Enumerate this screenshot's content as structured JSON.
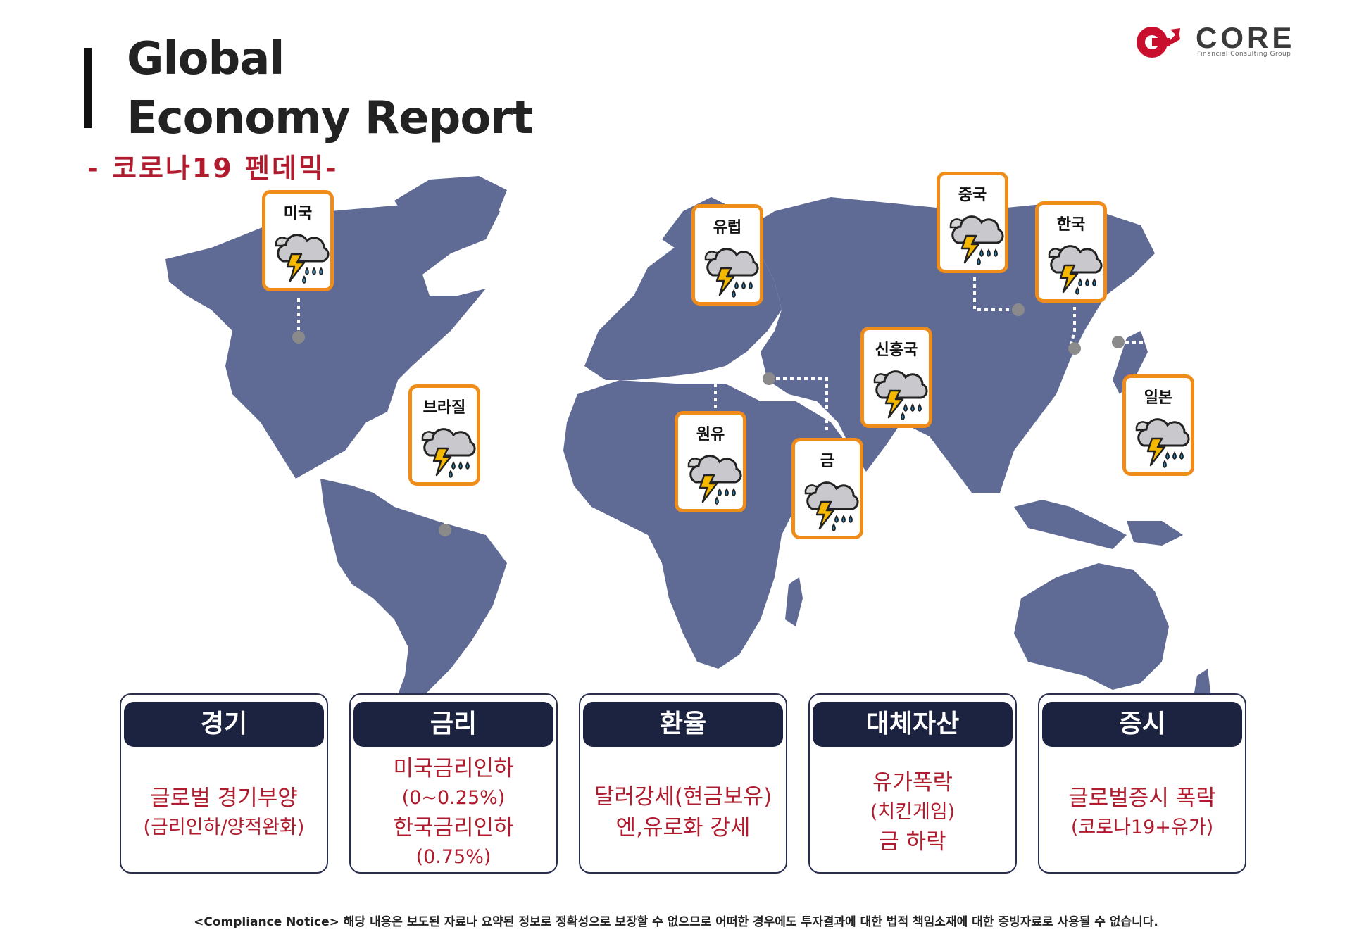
{
  "header": {
    "title_line1": "Global",
    "title_line2": "Economy Report",
    "subtitle": "- 코로나19 펜데믹-"
  },
  "logo": {
    "name": "CORE",
    "tagline": "Financial Consulting Group",
    "brand_color": "#c8102e"
  },
  "colors": {
    "map_fill": "#5f6b94",
    "card_border": "#f08c1a",
    "panel_header": "#1c2340",
    "accent_text": "#b01c2e"
  },
  "map_markers": [
    {
      "label": "미국",
      "icon": "thunderstorm-icon"
    },
    {
      "label": "브라질",
      "icon": "thunderstorm-icon"
    },
    {
      "label": "유럽",
      "icon": "thunderstorm-icon"
    },
    {
      "label": "원유",
      "icon": "thunderstorm-icon"
    },
    {
      "label": "금",
      "icon": "thunderstorm-icon"
    },
    {
      "label": "신흥국",
      "icon": "thunderstorm-icon"
    },
    {
      "label": "중국",
      "icon": "thunderstorm-icon"
    },
    {
      "label": "한국",
      "icon": "thunderstorm-icon"
    },
    {
      "label": "일본",
      "icon": "thunderstorm-icon"
    }
  ],
  "panels": [
    {
      "header": "경기",
      "lines": [
        "글로벌 경기부양",
        "(금리인하/양적완화)"
      ]
    },
    {
      "header": "금리",
      "lines": [
        "미국금리인하",
        "(0~0.25%)",
        "한국금리인하",
        "(0.75%)"
      ]
    },
    {
      "header": "환율",
      "lines": [
        "달러강세(현금보유)",
        "엔,유로화 강세"
      ]
    },
    {
      "header": "대체자산",
      "lines": [
        "유가폭락",
        "(치킨게임)",
        "금 하락"
      ]
    },
    {
      "header": "증시",
      "lines": [
        "글로벌증시 폭락",
        "(코로나19+유가)"
      ]
    }
  ],
  "footer": {
    "notice": "<Compliance Notice> 해당 내용은 보도된 자료나 요약된 정보로 정확성으로 보장할 수 없으므로 어떠한 경우에도 투자결과에 대한 법적 책임소재에 대한 증빙자료로 사용될 수 없습니다."
  }
}
